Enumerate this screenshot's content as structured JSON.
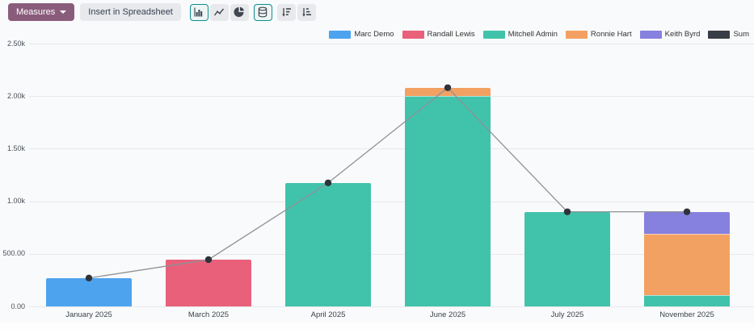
{
  "toolbar": {
    "measures_label": "Measures",
    "insert_spreadsheet_label": "Insert in Spreadsheet",
    "view_buttons": [
      {
        "name": "bar-chart",
        "active": true
      },
      {
        "name": "line-chart",
        "active": false
      },
      {
        "name": "pie-chart",
        "active": false
      },
      {
        "name": "stacked-toggle",
        "active": true
      },
      {
        "name": "sort-descending",
        "active": false
      },
      {
        "name": "sort-ascending",
        "active": false
      }
    ]
  },
  "colors": {
    "page_bg": "#f9fafb",
    "toolbar_button_bg": "#e7e9ec",
    "measures_button_bg": "#8a5c7c",
    "active_button_border": "#0d8e8e",
    "grid_line": "#e7e9ec",
    "sum_line": "#8f9196",
    "sum_point": "#2e333a"
  },
  "chart_data": {
    "type": "bar",
    "stacked": true,
    "grid": true,
    "legend_position": "top-right",
    "categories": [
      "January 2025",
      "March 2025",
      "April 2025",
      "June 2025",
      "July 2025",
      "November 2025"
    ],
    "series": [
      {
        "name": "Marc Demo",
        "color": "#4da3ee",
        "type": "bar",
        "values": [
          270,
          0,
          0,
          0,
          0,
          0
        ]
      },
      {
        "name": "Randall Lewis",
        "color": "#e8607a",
        "type": "bar",
        "values": [
          0,
          445,
          0,
          0,
          0,
          0
        ]
      },
      {
        "name": "Mitchell Admin",
        "color": "#41c3ab",
        "type": "bar",
        "values": [
          0,
          0,
          1175,
          2000,
          900,
          110
        ]
      },
      {
        "name": "Ronnie Hart",
        "color": "#f2a163",
        "type": "bar",
        "values": [
          0,
          0,
          0,
          80,
          0,
          580
        ]
      },
      {
        "name": "Keith Byrd",
        "color": "#8680de",
        "type": "bar",
        "values": [
          0,
          0,
          0,
          0,
          0,
          210
        ]
      },
      {
        "name": "Sum",
        "color": "#383e45",
        "type": "line",
        "values": [
          270,
          445,
          1175,
          2080,
          900,
          900
        ]
      }
    ],
    "yticks": [
      {
        "value": 0,
        "label": "0.00"
      },
      {
        "value": 500,
        "label": "500.00"
      },
      {
        "value": 1000,
        "label": "1.00k"
      },
      {
        "value": 1500,
        "label": "1.50k"
      },
      {
        "value": 2000,
        "label": "2.00k"
      },
      {
        "value": 2500,
        "label": "2.50k"
      }
    ],
    "ylim": [
      0,
      2500
    ]
  }
}
